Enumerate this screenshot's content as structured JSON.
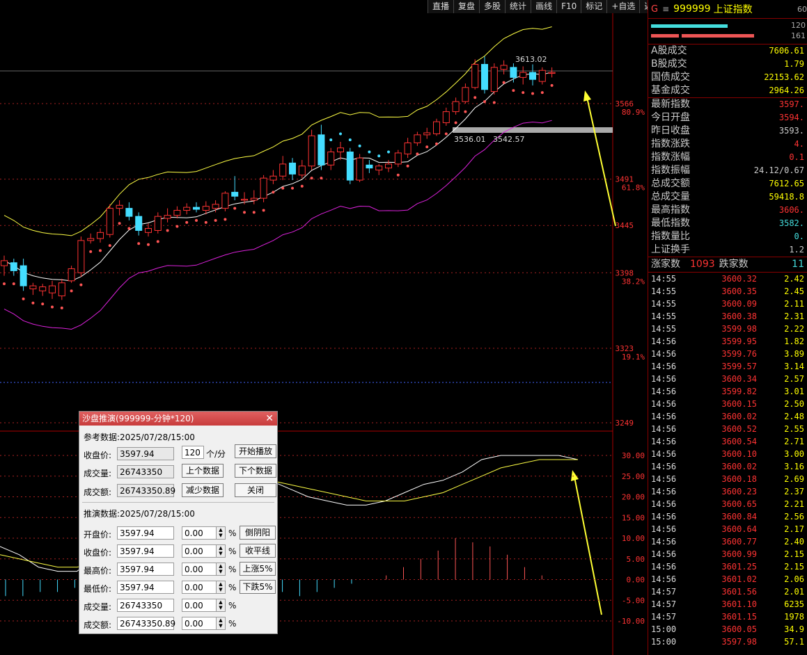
{
  "toolbar": [
    "直播",
    "复盘",
    "多股",
    "统计",
    "画线",
    "F10",
    "标记",
    "+自选",
    "返回"
  ],
  "chart_data": {
    "type": "candlestick",
    "price_axis_labels": [
      "3566",
      "3491",
      "3445",
      "3398",
      "3323",
      "3249"
    ],
    "fib_labels": [
      "80.9%",
      "61.8%",
      "38.2%",
      "19.1%"
    ],
    "annotations": [
      "3613.02",
      "3536.01",
      "3542.57"
    ],
    "candles": [
      {
        "o": 3405,
        "c": 3410,
        "h": 3415,
        "l": 3395
      },
      {
        "o": 3408,
        "c": 3400,
        "h": 3412,
        "l": 3395
      },
      {
        "o": 3405,
        "c": 3385,
        "h": 3412,
        "l": 3380
      },
      {
        "o": 3382,
        "c": 3385,
        "h": 3388,
        "l": 3376
      },
      {
        "o": 3380,
        "c": 3384,
        "h": 3387,
        "l": 3375
      },
      {
        "o": 3378,
        "c": 3385,
        "h": 3390,
        "l": 3372
      },
      {
        "o": 3375,
        "c": 3388,
        "h": 3392,
        "l": 3371
      },
      {
        "o": 3390,
        "c": 3402,
        "h": 3405,
        "l": 3388
      },
      {
        "o": 3398,
        "c": 3430,
        "h": 3434,
        "l": 3394
      },
      {
        "o": 3430,
        "c": 3432,
        "h": 3437,
        "l": 3427
      },
      {
        "o": 3432,
        "c": 3438,
        "h": 3442,
        "l": 3428
      },
      {
        "o": 3436,
        "c": 3462,
        "h": 3466,
        "l": 3433
      },
      {
        "o": 3462,
        "c": 3465,
        "h": 3470,
        "l": 3455
      },
      {
        "o": 3462,
        "c": 3454,
        "h": 3468,
        "l": 3450
      },
      {
        "o": 3454,
        "c": 3440,
        "h": 3458,
        "l": 3435
      },
      {
        "o": 3438,
        "c": 3442,
        "h": 3447,
        "l": 3434
      },
      {
        "o": 3440,
        "c": 3454,
        "h": 3458,
        "l": 3437
      },
      {
        "o": 3452,
        "c": 3455,
        "h": 3462,
        "l": 3448
      },
      {
        "o": 3455,
        "c": 3460,
        "h": 3464,
        "l": 3452
      },
      {
        "o": 3460,
        "c": 3463,
        "h": 3467,
        "l": 3456
      },
      {
        "o": 3463,
        "c": 3461,
        "h": 3468,
        "l": 3458
      },
      {
        "o": 3460,
        "c": 3464,
        "h": 3469,
        "l": 3456
      },
      {
        "o": 3462,
        "c": 3466,
        "h": 3470,
        "l": 3458
      },
      {
        "o": 3462,
        "c": 3477,
        "h": 3479,
        "l": 3459
      },
      {
        "o": 3478,
        "c": 3474,
        "h": 3494,
        "l": 3470
      },
      {
        "o": 3470,
        "c": 3471,
        "h": 3478,
        "l": 3466
      },
      {
        "o": 3470,
        "c": 3472,
        "h": 3480,
        "l": 3466
      },
      {
        "o": 3472,
        "c": 3492,
        "h": 3495,
        "l": 3468
      },
      {
        "o": 3490,
        "c": 3494,
        "h": 3500,
        "l": 3486
      },
      {
        "o": 3494,
        "c": 3506,
        "h": 3514,
        "l": 3490
      },
      {
        "o": 3507,
        "c": 3496,
        "h": 3512,
        "l": 3490
      },
      {
        "o": 3495,
        "c": 3504,
        "h": 3510,
        "l": 3492
      },
      {
        "o": 3504,
        "c": 3534,
        "h": 3540,
        "l": 3500
      },
      {
        "o": 3535,
        "c": 3505,
        "h": 3545,
        "l": 3500
      },
      {
        "o": 3505,
        "c": 3518,
        "h": 3522,
        "l": 3500
      },
      {
        "o": 3518,
        "c": 3522,
        "h": 3528,
        "l": 3510
      },
      {
        "o": 3518,
        "c": 3490,
        "h": 3522,
        "l": 3486
      },
      {
        "o": 3490,
        "c": 3512,
        "h": 3516,
        "l": 3488
      },
      {
        "o": 3505,
        "c": 3502,
        "h": 3510,
        "l": 3497
      },
      {
        "o": 3500,
        "c": 3504,
        "h": 3506,
        "l": 3495
      },
      {
        "o": 3502,
        "c": 3506,
        "h": 3510,
        "l": 3498
      },
      {
        "o": 3506,
        "c": 3517,
        "h": 3520,
        "l": 3503
      },
      {
        "o": 3516,
        "c": 3527,
        "h": 3532,
        "l": 3512
      },
      {
        "o": 3527,
        "c": 3535,
        "h": 3538,
        "l": 3524
      },
      {
        "o": 3535,
        "c": 3537,
        "h": 3542,
        "l": 3531
      },
      {
        "o": 3536,
        "c": 3548,
        "h": 3551,
        "l": 3534
      },
      {
        "o": 3547,
        "c": 3558,
        "h": 3562,
        "l": 3544
      },
      {
        "o": 3558,
        "c": 3568,
        "h": 3572,
        "l": 3555
      },
      {
        "o": 3568,
        "c": 3582,
        "h": 3586,
        "l": 3566
      },
      {
        "o": 3582,
        "c": 3605,
        "h": 3610,
        "l": 3580
      },
      {
        "o": 3605,
        "c": 3580,
        "h": 3613,
        "l": 3576
      },
      {
        "o": 3578,
        "c": 3602,
        "h": 3606,
        "l": 3575
      },
      {
        "o": 3600,
        "c": 3604,
        "h": 3609,
        "l": 3595
      },
      {
        "o": 3602,
        "c": 3592,
        "h": 3606,
        "l": 3587
      },
      {
        "o": 3592,
        "c": 3597,
        "h": 3603,
        "l": 3585
      },
      {
        "o": 3597,
        "c": 3590,
        "h": 3605,
        "l": 3584
      },
      {
        "o": 3588,
        "c": 3599,
        "h": 3602,
        "l": 3585
      },
      {
        "o": 3596,
        "c": 3597,
        "h": 3602,
        "l": 3592
      }
    ],
    "macd_axis_labels": [
      "30.00",
      "25.00",
      "20.00",
      "15.00",
      "10.00",
      "5.00",
      "0.00",
      "-5.00",
      "-10.00"
    ],
    "macd_dif": [
      8,
      6,
      3,
      2,
      2,
      6,
      14,
      18,
      22,
      23,
      24,
      25,
      25,
      25,
      24,
      22,
      20,
      19,
      18,
      18,
      19,
      21,
      23,
      24,
      26,
      29,
      30,
      30,
      30,
      30,
      29
    ],
    "macd_dea": [
      6,
      5,
      4,
      3,
      3,
      4,
      7,
      10,
      14,
      17,
      20,
      22,
      23,
      24,
      24,
      23,
      22,
      21,
      20,
      19,
      19,
      19,
      20,
      21,
      23,
      25,
      27,
      28,
      29,
      29,
      29
    ],
    "macd_hist": [
      -4,
      -4,
      -3,
      -3,
      -2,
      3,
      6,
      7,
      7,
      6,
      5,
      3,
      2,
      1,
      0,
      -2,
      -3,
      -4,
      -3,
      -2,
      -1,
      0,
      1,
      3,
      5,
      7,
      10,
      9,
      8,
      6,
      3,
      1,
      0
    ]
  },
  "right_panel": {
    "header": {
      "g": "G",
      "eq": "≡",
      "code": "999999",
      "name": "上证指数",
      "tail": "60"
    },
    "bars": [
      "120",
      "161"
    ],
    "rows": [
      {
        "label": "A股成交",
        "value": "7606.61"
      },
      {
        "label": "B股成交",
        "value": "1.79"
      },
      {
        "label": "国债成交",
        "value": "22153.62"
      },
      {
        "label": "基金成交",
        "value": "2964.26"
      },
      {
        "label": "最新指数",
        "value": "3597."
      },
      {
        "label": "今日开盘",
        "value": "3594."
      },
      {
        "label": "昨日收盘",
        "value": "3593."
      },
      {
        "label": "指数涨跌",
        "value": "4."
      },
      {
        "label": "指数涨幅",
        "value": "0.1"
      },
      {
        "label": "指数振幅",
        "value": "24.12/0.67"
      },
      {
        "label": "总成交额",
        "value": "7612.65"
      },
      {
        "label": "总成交量",
        "value": "59418.8"
      },
      {
        "label": "最高指数",
        "value": "3606."
      },
      {
        "label": "最低指数",
        "value": "3582."
      },
      {
        "label": "指数量比",
        "value": "0."
      },
      {
        "label": "上证换手",
        "value": "1.2"
      }
    ],
    "zhang": {
      "label1": "涨家数",
      "val1": "1093",
      "label2": "跌家数",
      "val2": "11"
    },
    "ticks": [
      {
        "t": "14:55",
        "p": "3600.32",
        "v": "2.42"
      },
      {
        "t": "14:55",
        "p": "3600.35",
        "v": "2.45"
      },
      {
        "t": "14:55",
        "p": "3600.09",
        "v": "2.11"
      },
      {
        "t": "14:55",
        "p": "3600.38",
        "v": "2.31"
      },
      {
        "t": "14:55",
        "p": "3599.98",
        "v": "2.22"
      },
      {
        "t": "14:56",
        "p": "3599.95",
        "v": "1.82"
      },
      {
        "t": "14:56",
        "p": "3599.76",
        "v": "3.89"
      },
      {
        "t": "14:56",
        "p": "3599.57",
        "v": "3.14"
      },
      {
        "t": "14:56",
        "p": "3600.34",
        "v": "2.57"
      },
      {
        "t": "14:56",
        "p": "3599.82",
        "v": "3.01"
      },
      {
        "t": "14:56",
        "p": "3600.15",
        "v": "2.50"
      },
      {
        "t": "14:56",
        "p": "3600.02",
        "v": "2.48"
      },
      {
        "t": "14:56",
        "p": "3600.52",
        "v": "2.55"
      },
      {
        "t": "14:56",
        "p": "3600.54",
        "v": "2.71"
      },
      {
        "t": "14:56",
        "p": "3600.10",
        "v": "3.00"
      },
      {
        "t": "14:56",
        "p": "3600.02",
        "v": "3.16"
      },
      {
        "t": "14:56",
        "p": "3600.18",
        "v": "2.69"
      },
      {
        "t": "14:56",
        "p": "3600.23",
        "v": "2.37"
      },
      {
        "t": "14:56",
        "p": "3600.65",
        "v": "2.21"
      },
      {
        "t": "14:56",
        "p": "3600.84",
        "v": "2.56"
      },
      {
        "t": "14:56",
        "p": "3600.64",
        "v": "2.17"
      },
      {
        "t": "14:56",
        "p": "3600.77",
        "v": "2.40"
      },
      {
        "t": "14:56",
        "p": "3600.99",
        "v": "2.15"
      },
      {
        "t": "14:56",
        "p": "3601.25",
        "v": "2.15"
      },
      {
        "t": "14:56",
        "p": "3601.02",
        "v": "2.06"
      },
      {
        "t": "14:57",
        "p": "3601.56",
        "v": "2.01"
      },
      {
        "t": "14:57",
        "p": "3601.10",
        "v": "6235"
      },
      {
        "t": "14:57",
        "p": "3601.15",
        "v": "1978"
      },
      {
        "t": "15:00",
        "p": "3600.05",
        "v": "34.9"
      },
      {
        "t": "15:00",
        "p": "3597.98",
        "v": "57.1"
      }
    ]
  },
  "dialog": {
    "title": "沙盘推演(999999-分钟*120)",
    "close": "✕",
    "ref_label": "参考数据:2025/07/28/15:00",
    "close_price_label": "收盘价:",
    "close_price": "3597.94",
    "volume_label": "成交量:",
    "volume": "26743350",
    "amount_label": "成交额:",
    "amount": "26743350.89",
    "rate": "120",
    "rate_unit": "个/分",
    "btn_play": "开始播放",
    "btn_prev": "上个数据",
    "btn_next": "下个数据",
    "btn_less": "减少数据",
    "btn_close": "关闭",
    "deduce_label": "推演数据:2025/07/28/15:00",
    "open_label": "开盘价:",
    "open": "3597.94",
    "close2_label": "收盘价:",
    "close2": "3597.94",
    "high_label": "最高价:",
    "high": "3597.94",
    "low_label": "最低价:",
    "low": "3597.94",
    "vol2_label": "成交量:",
    "vol2": "26743350",
    "amt2_label": "成交额:",
    "amt2": "26743350.89",
    "pct_values": [
      "0.00",
      "0.00",
      "0.00",
      "0.00",
      "0.00",
      "0.00"
    ],
    "pct_sign": "%",
    "btn_reverse": "倒阴阳",
    "btn_flat": "收平线",
    "btn_up5": "上涨5%",
    "btn_down5": "下跌5%"
  }
}
